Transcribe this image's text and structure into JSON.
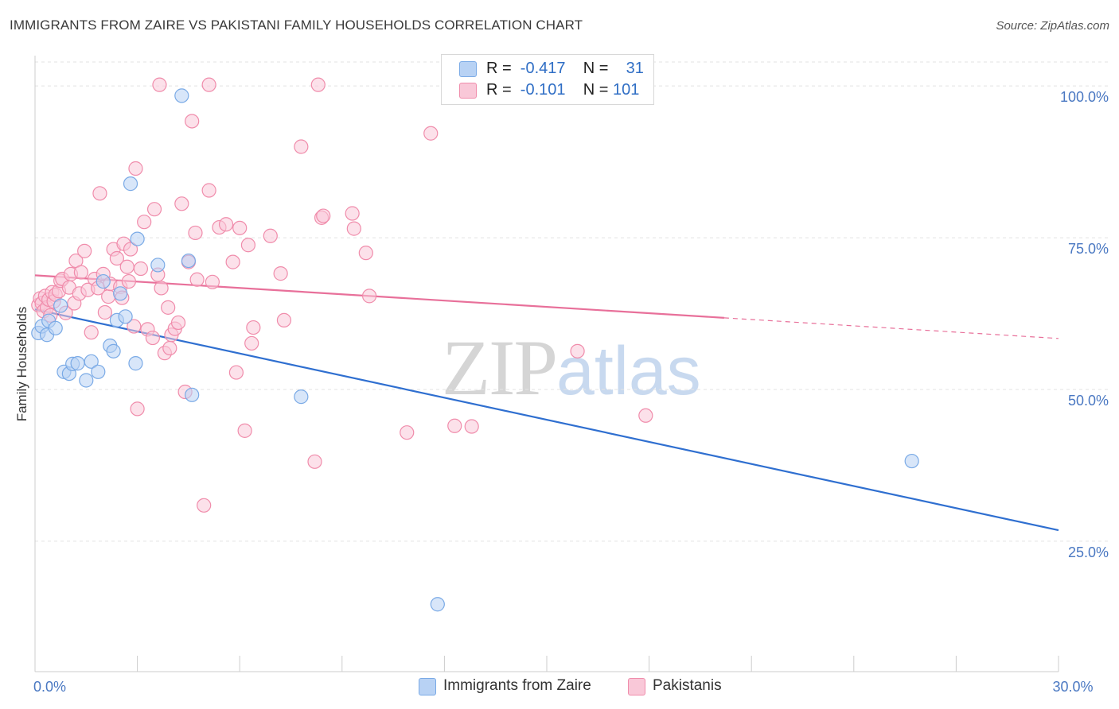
{
  "chart_data": {
    "type": "scatter",
    "title": "IMMIGRANTS FROM ZAIRE VS PAKISTANI FAMILY HOUSEHOLDS CORRELATION CHART",
    "source": "Source: ZipAtlas.com",
    "ylabel": "Family Households",
    "xlim": [
      0,
      30
    ],
    "ylim": [
      3.5,
      105
    ],
    "y_ticks": [
      {
        "value": 25,
        "label": "25.0%"
      },
      {
        "value": 50,
        "label": "50.0%"
      },
      {
        "value": 75,
        "label": "75.0%"
      },
      {
        "value": 100,
        "label": "100.0%"
      }
    ],
    "x_tick_labels": [
      {
        "value": 0,
        "label": "0.0%"
      },
      {
        "value": 30,
        "label": "30.0%"
      }
    ],
    "x_minor_ticks": [
      3,
      6,
      9,
      12,
      15,
      18,
      21,
      24,
      27,
      30
    ],
    "watermark": {
      "zip": "ZIP",
      "atlas": "atlas"
    },
    "series": [
      {
        "name": "Immigrants from Zaire",
        "color": "#7aaae6",
        "fill": "#b8d2f4",
        "line_color": "#2f6fd0",
        "R": "-0.417",
        "N": "31",
        "trend": {
          "x0": 0,
          "y0": 63.2,
          "x1": 30,
          "y1": 26.8,
          "solid_until": 30
        },
        "points": [
          [
            0.1,
            59.3
          ],
          [
            0.2,
            60.4
          ],
          [
            0.35,
            59.0
          ],
          [
            0.4,
            61.3
          ],
          [
            0.6,
            60.1
          ],
          [
            0.75,
            63.8
          ],
          [
            0.85,
            52.9
          ],
          [
            1.0,
            52.6
          ],
          [
            1.1,
            54.2
          ],
          [
            1.25,
            54.3
          ],
          [
            1.5,
            51.5
          ],
          [
            1.65,
            54.6
          ],
          [
            1.85,
            52.9
          ],
          [
            2.0,
            67.8
          ],
          [
            2.2,
            57.2
          ],
          [
            2.3,
            56.3
          ],
          [
            2.4,
            61.4
          ],
          [
            2.5,
            65.8
          ],
          [
            2.65,
            62.0
          ],
          [
            2.8,
            83.9
          ],
          [
            2.95,
            54.3
          ],
          [
            3.0,
            74.8
          ],
          [
            3.6,
            70.5
          ],
          [
            4.3,
            98.4
          ],
          [
            4.5,
            71.2
          ],
          [
            4.6,
            49.1
          ],
          [
            7.8,
            48.8
          ],
          [
            25.7,
            38.2
          ],
          [
            11.8,
            14.6
          ]
        ]
      },
      {
        "name": "Pakistanis",
        "color": "#f08cab",
        "fill": "#f9c8d8",
        "line_color": "#e8709a",
        "R": "-0.101",
        "N": "101",
        "trend": {
          "x0": 0,
          "y0": 68.8,
          "x1": 30,
          "y1": 58.4,
          "solid_until": 20.2
        },
        "points": [
          [
            0.1,
            63.9
          ],
          [
            0.15,
            65.0
          ],
          [
            0.2,
            64.2
          ],
          [
            0.25,
            62.9
          ],
          [
            0.3,
            65.4
          ],
          [
            0.35,
            63.5
          ],
          [
            0.4,
            64.8
          ],
          [
            0.45,
            62.2
          ],
          [
            0.5,
            66.0
          ],
          [
            0.55,
            64.5
          ],
          [
            0.6,
            65.6
          ],
          [
            0.7,
            66.2
          ],
          [
            0.75,
            67.9
          ],
          [
            0.8,
            68.2
          ],
          [
            0.9,
            62.6
          ],
          [
            1.0,
            66.8
          ],
          [
            1.05,
            69.0
          ],
          [
            1.15,
            64.2
          ],
          [
            1.2,
            71.2
          ],
          [
            1.3,
            65.8
          ],
          [
            1.35,
            69.3
          ],
          [
            1.45,
            72.8
          ],
          [
            1.55,
            66.4
          ],
          [
            1.65,
            59.4
          ],
          [
            1.75,
            68.2
          ],
          [
            1.85,
            66.7
          ],
          [
            1.9,
            82.3
          ],
          [
            2.0,
            69.0
          ],
          [
            2.05,
            62.7
          ],
          [
            2.15,
            65.3
          ],
          [
            2.2,
            67.4
          ],
          [
            2.3,
            73.1
          ],
          [
            2.4,
            71.6
          ],
          [
            2.5,
            66.9
          ],
          [
            2.55,
            65.1
          ],
          [
            2.6,
            74.0
          ],
          [
            2.7,
            70.2
          ],
          [
            2.75,
            67.8
          ],
          [
            2.8,
            73.1
          ],
          [
            2.9,
            60.4
          ],
          [
            2.95,
            86.4
          ],
          [
            3.0,
            46.8
          ],
          [
            3.1,
            69.9
          ],
          [
            3.2,
            77.6
          ],
          [
            3.3,
            59.9
          ],
          [
            3.45,
            58.5
          ],
          [
            3.5,
            79.7
          ],
          [
            3.6,
            68.9
          ],
          [
            3.7,
            66.7
          ],
          [
            3.8,
            56.0
          ],
          [
            3.9,
            63.5
          ],
          [
            3.95,
            56.8
          ],
          [
            4.0,
            59.0
          ],
          [
            4.1,
            60.0
          ],
          [
            4.2,
            61.0
          ],
          [
            4.3,
            80.6
          ],
          [
            4.4,
            49.6
          ],
          [
            4.5,
            71.0
          ],
          [
            4.6,
            94.2
          ],
          [
            4.7,
            75.8
          ],
          [
            4.75,
            68.1
          ],
          [
            4.95,
            30.9
          ],
          [
            5.1,
            82.8
          ],
          [
            5.2,
            67.7
          ],
          [
            5.4,
            76.7
          ],
          [
            5.6,
            77.2
          ],
          [
            5.8,
            71.0
          ],
          [
            5.9,
            52.8
          ],
          [
            6.0,
            76.6
          ],
          [
            6.15,
            43.2
          ],
          [
            6.25,
            73.8
          ],
          [
            6.35,
            57.6
          ],
          [
            6.4,
            60.2
          ],
          [
            6.9,
            75.3
          ],
          [
            7.2,
            69.1
          ],
          [
            7.3,
            61.4
          ],
          [
            7.8,
            90.0
          ],
          [
            8.2,
            38.1
          ],
          [
            8.4,
            78.3
          ],
          [
            8.45,
            78.6
          ],
          [
            9.3,
            79.0
          ],
          [
            9.35,
            76.5
          ],
          [
            9.7,
            72.5
          ],
          [
            9.8,
            65.4
          ],
          [
            10.9,
            42.9
          ],
          [
            11.6,
            92.2
          ],
          [
            12.3,
            44.0
          ],
          [
            12.8,
            43.9
          ],
          [
            15.9,
            56.3
          ],
          [
            17.9,
            45.7
          ],
          [
            3.65,
            100.2
          ],
          [
            5.1,
            100.2
          ],
          [
            8.3,
            100.2
          ]
        ]
      }
    ]
  }
}
